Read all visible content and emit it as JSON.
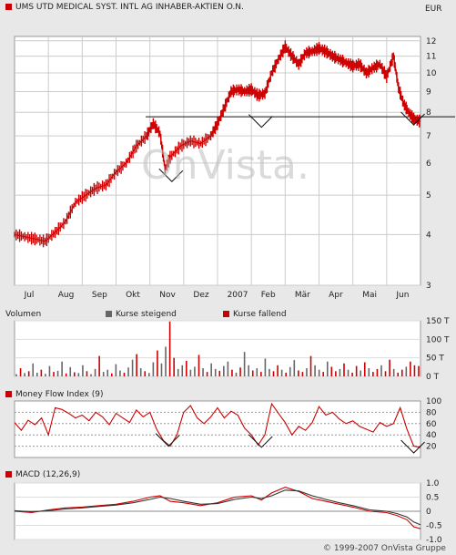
{
  "header": {
    "title": "UMS UTD MEDICAL SYST. INTL AG INHABER-AKTIEN O.N.",
    "currency": "EUR",
    "marker_color": "#cc0000"
  },
  "watermark": "OnVista.",
  "footer": {
    "copyright": "© 1999-2007 OnVista Gruppe"
  },
  "colors": {
    "red": "#cc0000",
    "gray": "#666666",
    "dark": "#333333",
    "bg": "#e8e8e8"
  },
  "chart_data": [
    {
      "type": "bar",
      "subtype": "ohlc-price",
      "title": "UMS UTD MEDICAL SYST. INTL AG INHABER-AKTIEN O.N.",
      "unit": "EUR",
      "scale": "log",
      "ylim": [
        3,
        12.3
      ],
      "yticks": [
        3,
        4,
        5,
        6,
        7,
        8,
        9,
        10,
        11,
        12
      ],
      "x_labels": [
        "Jul",
        "Aug",
        "Sep",
        "Okt",
        "Nov",
        "Dez",
        "2007",
        "Feb",
        "Mär",
        "Apr",
        "Mai",
        "Jun"
      ],
      "x_label_pos": [
        0.5,
        1.5,
        2.5,
        3.5,
        4.5,
        5.5,
        6.5,
        7.5,
        8.5,
        9.5,
        10.5,
        11.5
      ],
      "xlim": [
        0,
        12
      ],
      "grid": true,
      "support_level": 7.8,
      "series": [
        {
          "color": "#cc0000",
          "x": [
            0,
            0.3,
            0.6,
            0.9,
            1.2,
            1.5,
            1.8,
            2.1,
            2.4,
            2.7,
            3.0,
            3.3,
            3.6,
            3.9,
            4.1,
            4.3,
            4.45,
            4.6,
            4.9,
            5.2,
            5.5,
            5.8,
            6.0,
            6.2,
            6.4,
            6.6,
            6.8,
            7.0,
            7.2,
            7.4,
            7.6,
            7.8,
            8.0,
            8.2,
            8.4,
            8.6,
            8.8,
            9.0,
            9.2,
            9.4,
            9.6,
            9.8,
            10.0,
            10.2,
            10.4,
            10.6,
            10.8,
            11.0,
            11.2,
            11.35,
            11.5,
            11.65,
            11.8,
            12.0
          ],
          "values": [
            4.0,
            3.95,
            3.9,
            3.85,
            4.05,
            4.3,
            4.8,
            5.0,
            5.2,
            5.3,
            5.7,
            6.0,
            6.6,
            7.0,
            7.5,
            7.1,
            5.8,
            6.2,
            6.6,
            6.8,
            6.7,
            7.0,
            7.5,
            8.2,
            9.0,
            9.1,
            9.0,
            9.1,
            8.8,
            8.9,
            10.0,
            10.8,
            11.6,
            11.0,
            10.5,
            11.2,
            11.3,
            11.5,
            11.3,
            11.0,
            10.8,
            10.6,
            10.4,
            10.5,
            10.0,
            10.3,
            10.5,
            9.8,
            11.0,
            9.2,
            8.4,
            8.0,
            7.7,
            7.6
          ]
        }
      ],
      "annotations": [
        {
          "type": "check-mark",
          "x": 4.65,
          "y": 5.4
        },
        {
          "type": "check-mark",
          "x": 7.3,
          "y": 7.35
        },
        {
          "type": "check-mark",
          "x": 11.8,
          "y": 7.45
        }
      ]
    },
    {
      "type": "bar",
      "subtype": "volume",
      "title": "Volumen",
      "legend": [
        {
          "name": "Kurse steigend",
          "color": "#666666"
        },
        {
          "name": "Kurse fallend",
          "color": "#cc0000"
        }
      ],
      "yticks": [
        0,
        50,
        100,
        150
      ],
      "ytick_labels": [
        "0 T",
        "50 T",
        "100 T",
        "150 T"
      ],
      "ylim": [
        0,
        150
      ],
      "unit": "T",
      "xlim": [
        0,
        12
      ],
      "values": [
        6,
        22,
        9,
        14,
        35,
        10,
        18,
        7,
        28,
        12,
        15,
        40,
        8,
        25,
        11,
        9,
        30,
        14,
        6,
        20,
        55,
        12,
        18,
        8,
        33,
        16,
        10,
        24,
        45,
        60,
        22,
        14,
        9,
        38,
        70,
        35,
        80,
        148,
        50,
        20,
        30,
        42,
        18,
        26,
        58,
        22,
        12,
        35,
        20,
        15,
        28,
        40,
        18,
        10,
        24,
        66,
        30,
        16,
        22,
        12,
        48,
        20,
        14,
        30,
        18,
        10,
        25,
        44,
        16,
        12,
        22,
        55,
        30,
        18,
        12,
        40,
        26,
        14,
        20,
        35,
        18,
        10,
        28,
        16,
        38,
        22,
        12,
        20,
        30,
        14,
        45,
        20,
        10,
        18,
        26,
        40,
        30,
        28
      ],
      "directions": [
        1,
        0,
        1,
        0,
        1,
        1,
        0,
        1,
        1,
        0,
        1,
        1,
        0,
        1,
        0,
        1,
        1,
        0,
        1,
        1,
        0,
        1,
        1,
        0,
        1,
        1,
        0,
        1,
        1,
        0,
        1,
        0,
        1,
        1,
        0,
        1,
        1,
        0,
        0,
        1,
        1,
        0,
        1,
        1,
        0,
        1,
        0,
        1,
        1,
        0,
        1,
        1,
        0,
        1,
        0,
        1,
        1,
        0,
        1,
        0,
        1,
        1,
        0,
        0,
        1,
        0,
        1,
        1,
        0,
        0,
        1,
        0,
        1,
        1,
        0,
        1,
        0,
        0,
        1,
        0,
        1,
        0,
        0,
        1,
        0,
        1,
        0,
        0,
        1,
        0,
        0,
        1,
        0,
        0,
        1,
        0,
        0,
        0
      ]
    },
    {
      "type": "line",
      "subtype": "money-flow-index",
      "title": "Money Flow Index (9)",
      "ylim": [
        0,
        100
      ],
      "yticks": [
        0,
        20,
        40,
        60,
        80,
        100
      ],
      "reference_lines": [
        20,
        40,
        60,
        80
      ],
      "xlim": [
        0,
        12
      ],
      "series": [
        {
          "color": "#cc0000",
          "x": [
            0,
            0.2,
            0.4,
            0.6,
            0.8,
            1.0,
            1.2,
            1.4,
            1.6,
            1.8,
            2.0,
            2.2,
            2.4,
            2.6,
            2.8,
            3.0,
            3.2,
            3.4,
            3.6,
            3.8,
            4.0,
            4.2,
            4.4,
            4.6,
            4.8,
            5.0,
            5.2,
            5.4,
            5.6,
            5.8,
            6.0,
            6.2,
            6.4,
            6.6,
            6.8,
            7.0,
            7.2,
            7.4,
            7.6,
            7.8,
            8.0,
            8.2,
            8.4,
            8.6,
            8.8,
            9.0,
            9.2,
            9.4,
            9.6,
            9.8,
            10.0,
            10.2,
            10.4,
            10.6,
            10.8,
            11.0,
            11.2,
            11.4,
            11.6,
            11.8,
            12.0
          ],
          "values": [
            62,
            48,
            66,
            58,
            70,
            40,
            88,
            85,
            78,
            70,
            75,
            65,
            80,
            72,
            58,
            78,
            70,
            62,
            84,
            72,
            80,
            50,
            30,
            20,
            40,
            80,
            92,
            70,
            60,
            72,
            88,
            70,
            82,
            75,
            52,
            40,
            22,
            40,
            95,
            78,
            62,
            40,
            55,
            48,
            62,
            90,
            75,
            80,
            68,
            60,
            65,
            55,
            50,
            45,
            62,
            55,
            60,
            88,
            50,
            20,
            18
          ]
        }
      ],
      "annotations": [
        {
          "type": "check-mark",
          "x": 4.55,
          "y": 20
        },
        {
          "type": "check-mark",
          "x": 7.3,
          "y": 18
        },
        {
          "type": "check-mark",
          "x": 11.8,
          "y": 8
        }
      ]
    },
    {
      "type": "line",
      "subtype": "macd",
      "title": "MACD (12,26,9)",
      "ylim": [
        -1.0,
        1.0
      ],
      "yticks": [
        -1.0,
        -0.5,
        0,
        0.5,
        1.0
      ],
      "ytick_labels": [
        "-1.0",
        "-0.5",
        "0",
        "0.5",
        "1.0"
      ],
      "xlim": [
        0,
        12
      ],
      "series": [
        {
          "color": "#cc0000",
          "x": [
            0,
            0.5,
            1.0,
            1.5,
            2.0,
            2.5,
            3.0,
            3.5,
            4.0,
            4.3,
            4.6,
            5.0,
            5.5,
            6.0,
            6.5,
            7.0,
            7.3,
            7.6,
            8.0,
            8.4,
            8.8,
            9.2,
            9.6,
            10.0,
            10.5,
            11.0,
            11.3,
            11.6,
            11.8,
            12.0
          ],
          "values": [
            0.0,
            -0.05,
            0.05,
            0.12,
            0.15,
            0.2,
            0.25,
            0.35,
            0.5,
            0.55,
            0.35,
            0.3,
            0.2,
            0.3,
            0.5,
            0.55,
            0.4,
            0.65,
            0.85,
            0.7,
            0.45,
            0.35,
            0.25,
            0.15,
            0.0,
            -0.05,
            -0.15,
            -0.3,
            -0.55,
            -0.62
          ]
        },
        {
          "color": "#333333",
          "x": [
            0,
            0.5,
            1.0,
            1.5,
            2.0,
            2.5,
            3.0,
            3.5,
            4.0,
            4.3,
            4.6,
            5.0,
            5.5,
            6.0,
            6.5,
            7.0,
            7.3,
            7.6,
            8.0,
            8.4,
            8.8,
            9.2,
            9.6,
            10.0,
            10.5,
            11.0,
            11.3,
            11.6,
            11.8,
            12.0
          ],
          "values": [
            0.02,
            -0.02,
            0.02,
            0.08,
            0.12,
            0.17,
            0.22,
            0.3,
            0.42,
            0.5,
            0.45,
            0.35,
            0.25,
            0.27,
            0.42,
            0.5,
            0.45,
            0.55,
            0.75,
            0.72,
            0.55,
            0.42,
            0.3,
            0.2,
            0.05,
            0.0,
            -0.08,
            -0.2,
            -0.38,
            -0.48
          ]
        }
      ]
    }
  ]
}
